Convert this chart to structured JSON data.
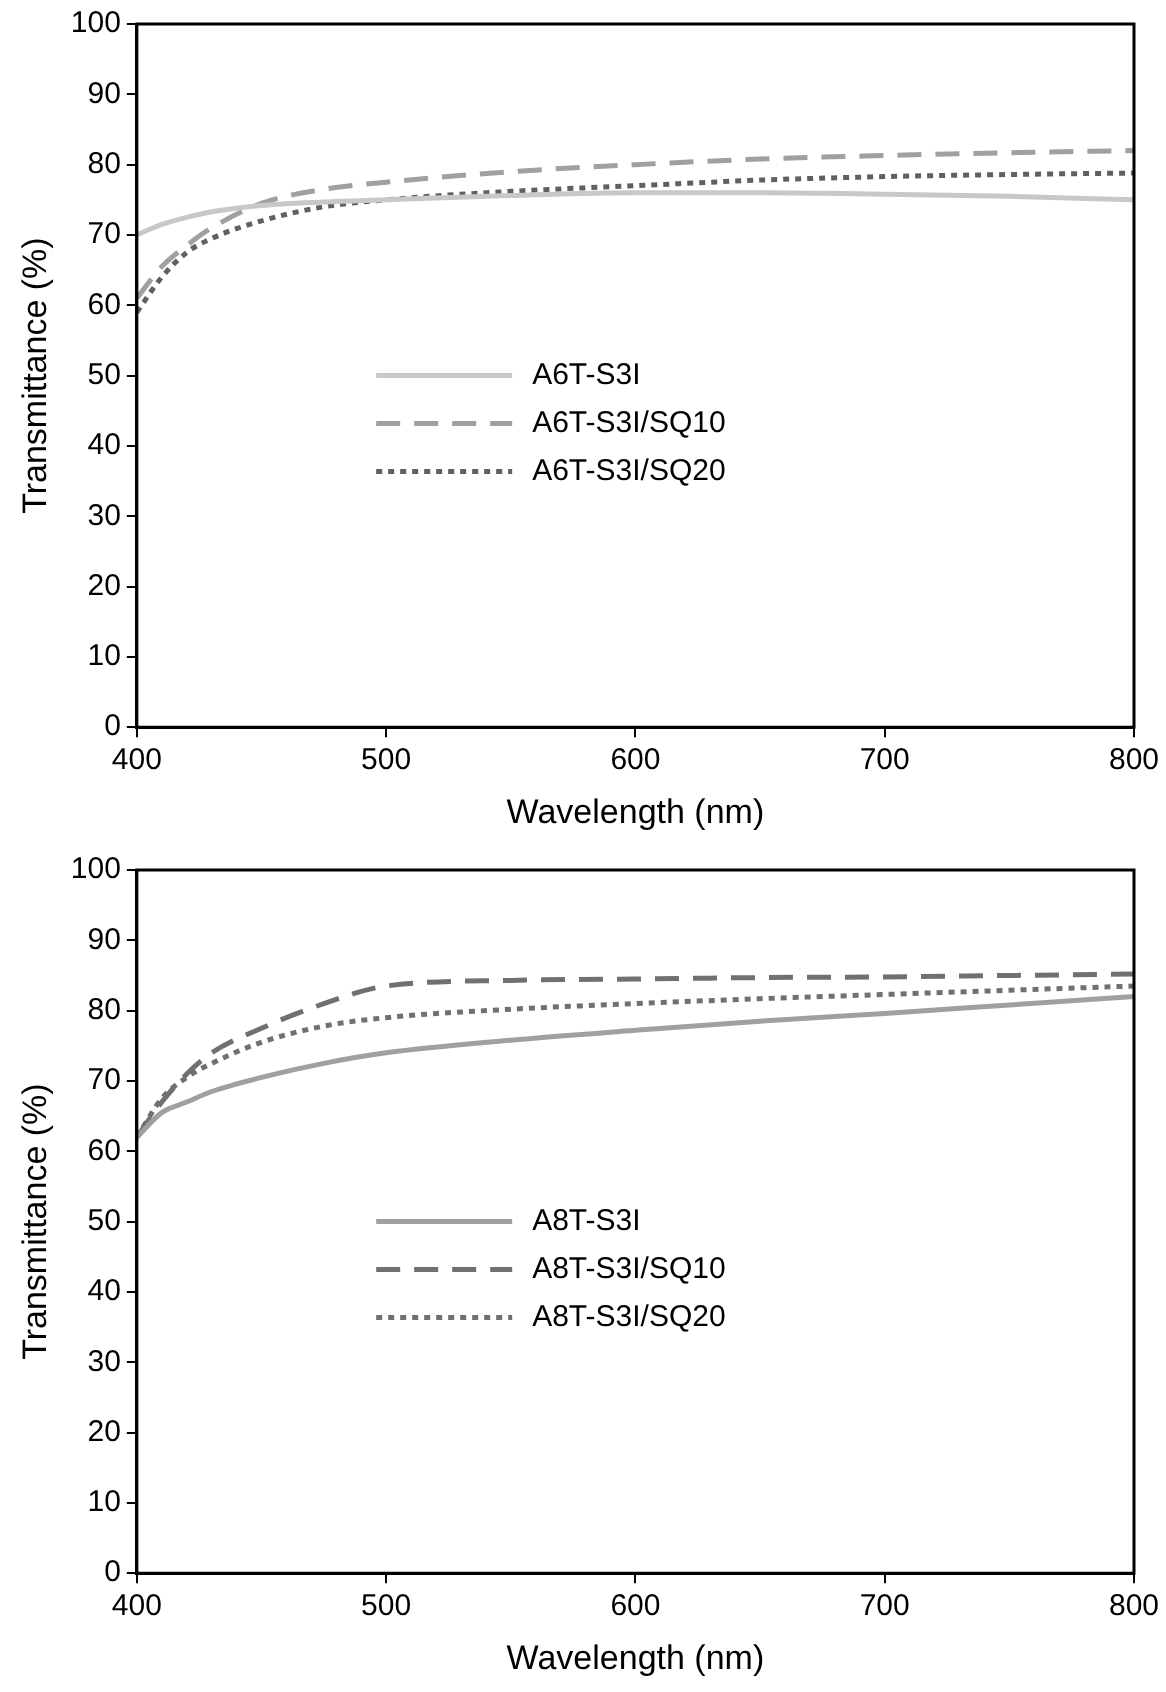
{
  "chart_data": [
    {
      "type": "line",
      "xlabel": "Wavelength (nm)",
      "ylabel": "Transmittance (%)",
      "x": [
        400,
        410,
        420,
        430,
        450,
        475,
        500,
        550,
        600,
        650,
        700,
        750,
        800
      ],
      "xlim": [
        400,
        800
      ],
      "xticks": [
        400,
        500,
        600,
        700,
        800
      ],
      "ylim": [
        0,
        100
      ],
      "yticks": [
        0,
        10,
        20,
        30,
        40,
        50,
        60,
        70,
        80,
        90,
        100
      ],
      "grid": false,
      "legend": "left",
      "marker": "none",
      "series": [
        {
          "name": "A6T-S3I",
          "color": "#c8c8c8",
          "line_style": "solid",
          "values": [
            70,
            71.5,
            72.5,
            73.3,
            74.2,
            74.7,
            75,
            75.6,
            76,
            76,
            75.8,
            75.5,
            75
          ]
        },
        {
          "name": "A6T-S3I/SQ10",
          "color": "#a0a0a0",
          "line_style": "dashed",
          "values": [
            61,
            65.5,
            68.5,
            71,
            74.5,
            76.5,
            77.5,
            79,
            80,
            80.8,
            81.3,
            81.7,
            82
          ]
        },
        {
          "name": "A6T-S3I/SQ20",
          "color": "#606060",
          "line_style": "dotted",
          "values": [
            59,
            64,
            67.5,
            69.5,
            72,
            74,
            75,
            76.2,
            77,
            77.8,
            78.3,
            78.6,
            78.8
          ]
        }
      ]
    },
    {
      "type": "line",
      "xlabel": "Wavelength (nm)",
      "ylabel": "Transmittance (%)",
      "x": [
        400,
        410,
        420,
        430,
        450,
        475,
        500,
        550,
        600,
        650,
        700,
        750,
        800
      ],
      "xlim": [
        400,
        800
      ],
      "xticks": [
        400,
        500,
        600,
        700,
        800
      ],
      "ylim": [
        0,
        100
      ],
      "yticks": [
        0,
        10,
        20,
        30,
        40,
        50,
        60,
        70,
        80,
        90,
        100
      ],
      "grid": false,
      "legend": "left",
      "marker": "none",
      "series": [
        {
          "name": "A8T-S3I",
          "color": "#a0a0a0",
          "line_style": "solid",
          "values": [
            62,
            65.5,
            67,
            68.5,
            70.5,
            72.5,
            74,
            75.8,
            77.2,
            78.5,
            79.6,
            80.8,
            82
          ]
        },
        {
          "name": "A8T-S3I/SQ10",
          "color": "#707070",
          "line_style": "dashed",
          "values": [
            62,
            67,
            71,
            74,
            77.5,
            81,
            83.5,
            84.3,
            84.5,
            84.7,
            84.8,
            85,
            85.2
          ]
        },
        {
          "name": "A8T-S3I/SQ20",
          "color": "#707070",
          "line_style": "dotted",
          "values": [
            62,
            67.5,
            70.5,
            72.5,
            75.5,
            77.8,
            79,
            80.2,
            81,
            81.7,
            82.3,
            82.9,
            83.5
          ]
        }
      ]
    }
  ]
}
